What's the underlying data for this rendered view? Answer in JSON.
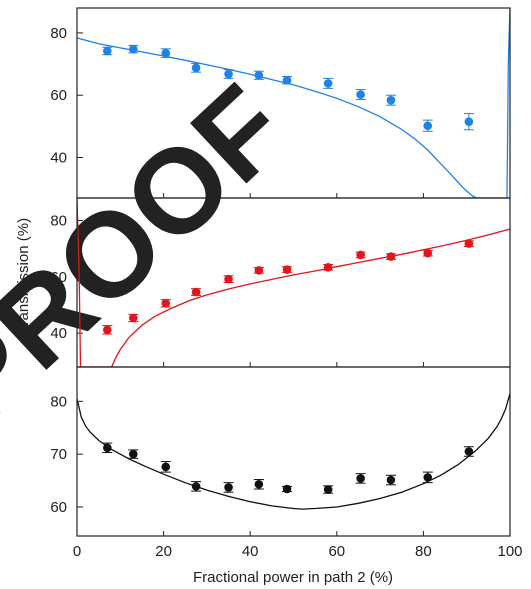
{
  "watermark": "PROOF",
  "chart_data": {
    "type": "scatter",
    "xlabel": "Fractional power in path 2 (%)",
    "ylabel": "Transmission (%)",
    "xlim": [
      0,
      100
    ],
    "xticks": [
      0,
      20,
      40,
      60,
      80,
      100
    ],
    "panels": [
      {
        "color": "#1e82e6",
        "ylim": [
          27,
          88
        ],
        "yticks": [
          40,
          60,
          80
        ],
        "points": [
          {
            "x": 7,
            "y": 74.2,
            "err": 1.2
          },
          {
            "x": 13,
            "y": 74.8,
            "err": 1.2
          },
          {
            "x": 20.5,
            "y": 73.5,
            "err": 1.4
          },
          {
            "x": 27.5,
            "y": 68.8,
            "err": 1.4
          },
          {
            "x": 35,
            "y": 66.8,
            "err": 1.4
          },
          {
            "x": 42,
            "y": 66.4,
            "err": 1.3
          },
          {
            "x": 48.5,
            "y": 64.8,
            "err": 1.2
          },
          {
            "x": 58,
            "y": 63.8,
            "err": 1.6
          },
          {
            "x": 65.5,
            "y": 60.2,
            "err": 1.6
          },
          {
            "x": 72.5,
            "y": 58.4,
            "err": 1.6
          },
          {
            "x": 81,
            "y": 50.2,
            "err": 1.8
          },
          {
            "x": 90.5,
            "y": 51.5,
            "err": 2.6
          }
        ],
        "curve": {
          "x": [
            0,
            5,
            10,
            15,
            20,
            25,
            30,
            35,
            40,
            45,
            50,
            55,
            60,
            65,
            70,
            75,
            78,
            81,
            84,
            87,
            89,
            90.5,
            91.5,
            92.3,
            99.3,
            99.6,
            100
          ],
          "y": [
            78.4,
            76.5,
            75.2,
            73.9,
            72.6,
            71.2,
            69.8,
            68.3,
            66.7,
            65.0,
            63.3,
            61.3,
            59.0,
            56.3,
            53.1,
            49.0,
            46.0,
            42.4,
            38.0,
            33.6,
            30.5,
            28.6,
            27.5,
            27.0,
            27.0,
            70.0,
            88.0
          ]
        }
      },
      {
        "color": "#e0161b",
        "ylim": [
          28,
          88
        ],
        "yticks": [
          40,
          60,
          80
        ],
        "points": [
          {
            "x": 7,
            "y": 41.2,
            "err": 1.5
          },
          {
            "x": 13,
            "y": 45.4,
            "err": 1.3
          },
          {
            "x": 20.5,
            "y": 50.6,
            "err": 1.3
          },
          {
            "x": 27.5,
            "y": 54.6,
            "err": 1.2
          },
          {
            "x": 35,
            "y": 59.2,
            "err": 1.2
          },
          {
            "x": 42,
            "y": 62.3,
            "err": 1.0
          },
          {
            "x": 48.5,
            "y": 62.6,
            "err": 1.0
          },
          {
            "x": 58,
            "y": 63.4,
            "err": 1.0
          },
          {
            "x": 65.5,
            "y": 67.8,
            "err": 1.0
          },
          {
            "x": 72.5,
            "y": 67.2,
            "err": 1.0
          },
          {
            "x": 81,
            "y": 68.4,
            "err": 1.0
          },
          {
            "x": 90.5,
            "y": 71.8,
            "err": 1.0
          }
        ],
        "curve": {
          "x": [
            0,
            0.5,
            0.8,
            8,
            9,
            10,
            12,
            15,
            18,
            22,
            26,
            30,
            35,
            40,
            45,
            50,
            55,
            60,
            65,
            70,
            75,
            80,
            85,
            90,
            95,
            100
          ],
          "y": [
            88,
            60,
            28,
            28,
            31.5,
            34.2,
            38.5,
            42.8,
            46.0,
            49.0,
            51.6,
            53.6,
            55.7,
            57.5,
            59.1,
            60.7,
            62.1,
            63.6,
            65.1,
            66.6,
            68.0,
            69.6,
            71.2,
            73.0,
            74.9,
            77.0
          ]
        }
      },
      {
        "color": "#111111",
        "ylim": [
          54.5,
          86.5
        ],
        "yticks": [
          60,
          70,
          80
        ],
        "points": [
          {
            "x": 7,
            "y": 71.2,
            "err": 0.9
          },
          {
            "x": 13,
            "y": 70.0,
            "err": 0.8
          },
          {
            "x": 20.5,
            "y": 67.6,
            "err": 1.0
          },
          {
            "x": 27.5,
            "y": 63.9,
            "err": 0.9
          },
          {
            "x": 35,
            "y": 63.7,
            "err": 0.9
          },
          {
            "x": 42,
            "y": 64.3,
            "err": 0.9
          },
          {
            "x": 48.5,
            "y": 63.4,
            "err": 0.5
          },
          {
            "x": 58,
            "y": 63.3,
            "err": 0.7
          },
          {
            "x": 65.5,
            "y": 65.4,
            "err": 0.9
          },
          {
            "x": 72.5,
            "y": 65.1,
            "err": 0.9
          },
          {
            "x": 81,
            "y": 65.6,
            "err": 1.0
          },
          {
            "x": 90.5,
            "y": 70.5,
            "err": 0.9
          }
        ],
        "curve": {
          "x": [
            0,
            1,
            2,
            3,
            5,
            8,
            12,
            16,
            20,
            25,
            30,
            35,
            40,
            45,
            50,
            52,
            55,
            60,
            65,
            70,
            75,
            80,
            84,
            88,
            92,
            95,
            97,
            98,
            99,
            100
          ],
          "y": [
            80.5,
            77.0,
            75.3,
            74.2,
            72.6,
            70.9,
            69.1,
            67.6,
            66.2,
            64.6,
            63.2,
            62.0,
            61.0,
            60.2,
            59.7,
            59.6,
            59.7,
            60.0,
            60.7,
            61.6,
            62.8,
            64.4,
            66.0,
            68.0,
            70.6,
            73.0,
            75.2,
            76.7,
            78.6,
            81.5
          ]
        }
      }
    ]
  }
}
